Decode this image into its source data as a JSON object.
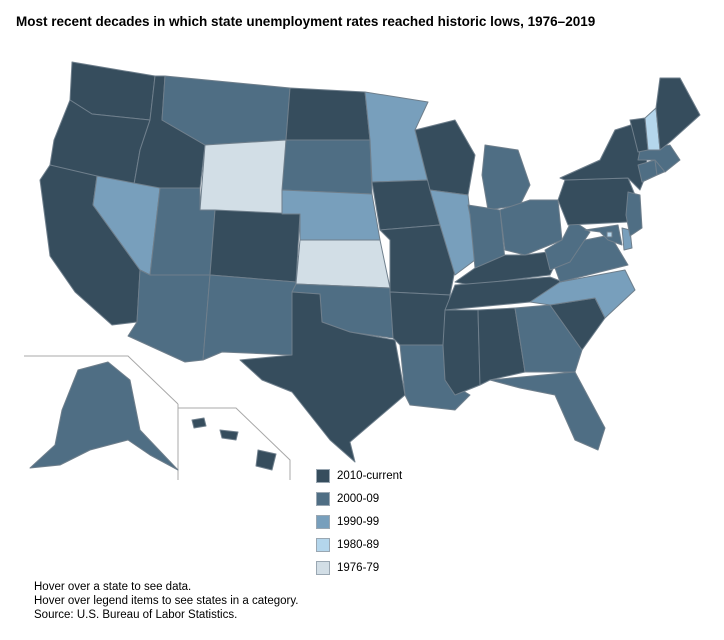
{
  "title": "Most recent decades in which state unemployment rates reached historic lows, 1976–2019",
  "legend": [
    {
      "label": "2010-current",
      "color": "#364d5d"
    },
    {
      "label": "2000-09",
      "color": "#4f6e84"
    },
    {
      "label": "1990-99",
      "color": "#789fbc"
    },
    {
      "label": "1980-89",
      "color": "#b4d6ec"
    },
    {
      "label": "1976-79",
      "color": "#d2dee6"
    }
  ],
  "notes": [
    "Hover over a state to see data.",
    "Hover over legend items to see states in a category.",
    "Source: U.S. Bureau of Labor Statistics."
  ],
  "states": {
    "WA": "2010-current",
    "OR": "2010-current",
    "CA": "2010-current",
    "ID": "2010-current",
    "NV": "1990-99",
    "MT": "2000-09",
    "WY": "1976-79",
    "UT": "2000-09",
    "AZ": "2000-09",
    "CO": "2010-current",
    "NM": "2000-09",
    "ND": "2010-current",
    "SD": "2000-09",
    "NE": "1990-99",
    "KS": "1976-79",
    "OK": "2000-09",
    "TX": "2010-current",
    "MN": "1990-99",
    "IA": "2010-current",
    "MO": "2010-current",
    "AR": "2010-current",
    "LA": "2000-09",
    "WI": "2010-current",
    "IL": "1990-99",
    "MI": "2000-09",
    "IN": "2000-09",
    "OH": "2000-09",
    "KY": "2010-current",
    "TN": "2010-current",
    "MS": "2010-current",
    "AL": "2010-current",
    "GA": "2000-09",
    "FL": "2000-09",
    "SC": "2010-current",
    "NC": "1990-99",
    "VA": "2000-09",
    "WV": "2000-09",
    "MD": "2000-09",
    "DE": "1990-99",
    "DC": "1980-89",
    "PA": "2010-current",
    "NJ": "2000-09",
    "NY": "2010-current",
    "CT": "2000-09",
    "RI": "2000-09",
    "MA": "2000-09",
    "VT": "2010-current",
    "NH": "1980-89",
    "ME": "2010-current",
    "AK": "2000-09",
    "HI": "2010-current"
  }
}
